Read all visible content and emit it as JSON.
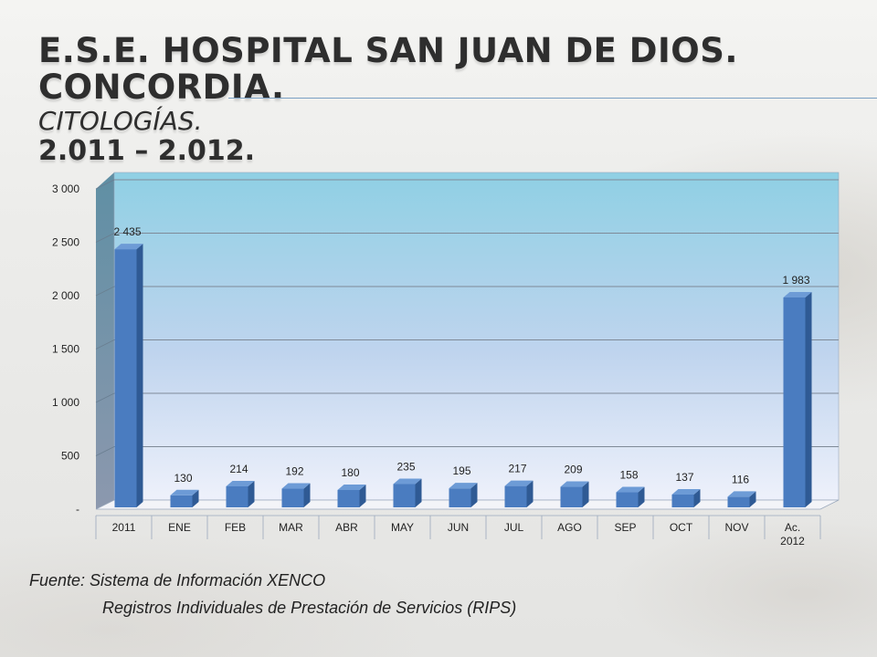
{
  "slide": {
    "title_line1": "E.S.E. Hospital San Juan de Dios.  Concordia.",
    "title_line2": "Citologías.",
    "title_line3": "2.011 – 2.012.",
    "source_line1": "Fuente: Sistema de Información XENCO",
    "source_line2": "Registros Individuales de Prestación de Servicios (RIPS)"
  },
  "chart_data": {
    "type": "bar",
    "title": "",
    "xlabel": "",
    "ylabel": "",
    "categories": [
      "2011",
      "ENE",
      "FEB",
      "MAR",
      "ABR",
      "MAY",
      "JUN",
      "JUL",
      "AGO",
      "SEP",
      "OCT",
      "NOV",
      "Ac. 2012"
    ],
    "series": [
      {
        "values": [
          2435,
          130,
          214,
          192,
          180,
          235,
          195,
          217,
          209,
          158,
          137,
          116,
          1983
        ]
      }
    ],
    "data_labels": [
      "2 435",
      "130",
      "214",
      "192",
      "180",
      "235",
      "195",
      "217",
      "209",
      "158",
      "137",
      "116",
      "1 983"
    ],
    "ylim": [
      0,
      3000
    ],
    "yticks": [
      0,
      500,
      1000,
      1500,
      2000,
      2500,
      3000
    ],
    "ytick_labels": [
      "-",
      "500",
      "1 000",
      "1 500",
      "2 000",
      "2 500",
      "3 000"
    ],
    "grid": true,
    "legend": "none",
    "style": "3d-column",
    "colors": {
      "bar": "#4a7cc0",
      "bar_side": "#2f5a94",
      "bar_top": "#6d9bd6",
      "wall_top": "#8fd0e4",
      "wall_bottom": "#e6ecfa"
    }
  }
}
